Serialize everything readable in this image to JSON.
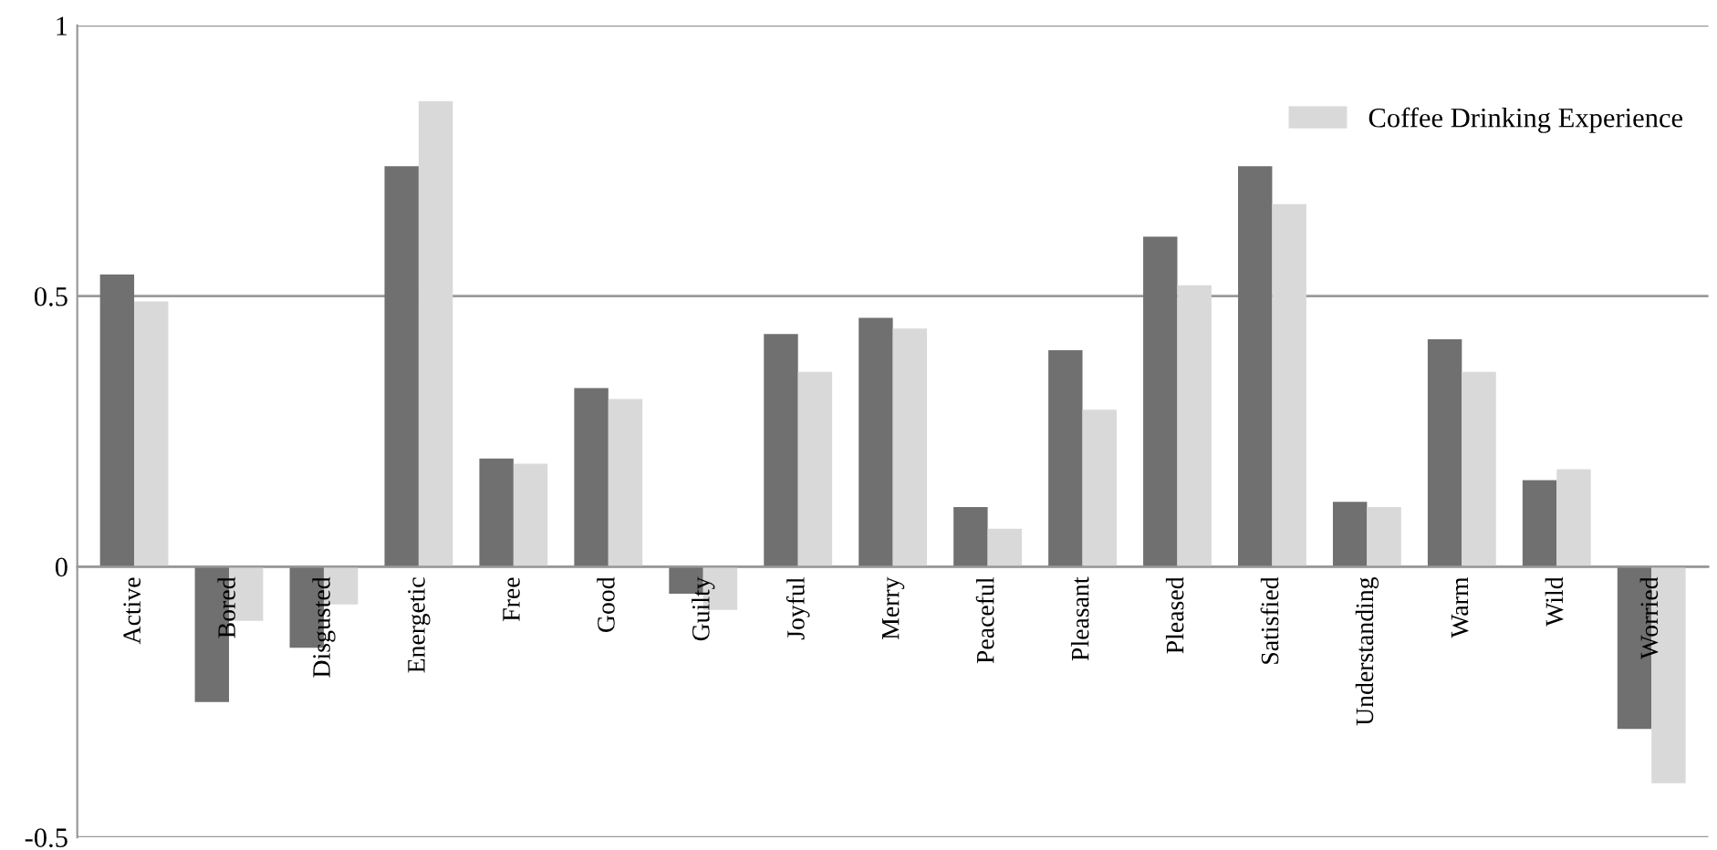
{
  "chart_data": {
    "type": "bar",
    "categories": [
      "Active",
      "Bored",
      "Disgusted",
      "Energetic",
      "Free",
      "Good",
      "Guilty",
      "Joyful",
      "Merry",
      "Peaceful",
      "Pleasant",
      "Pleased",
      "Satisfied",
      "Understanding",
      "Warm",
      "Wild",
      "Worried"
    ],
    "series": [
      {
        "color": "#707070",
        "values": [
          0.54,
          -0.25,
          -0.15,
          0.74,
          0.2,
          0.33,
          -0.05,
          0.43,
          0.46,
          0.11,
          0.4,
          0.61,
          0.74,
          0.12,
          0.42,
          0.16,
          -0.3
        ]
      },
      {
        "name": "Coffee Drinking Experience",
        "color": "#d9d9d9",
        "values": [
          0.49,
          -0.1,
          -0.07,
          0.86,
          0.19,
          0.31,
          -0.08,
          0.36,
          0.44,
          0.07,
          0.29,
          0.52,
          0.67,
          0.11,
          0.36,
          0.18,
          -0.4
        ]
      }
    ],
    "ylim": [
      -0.5,
      1
    ],
    "yticks": [
      -0.5,
      0,
      0.5,
      1
    ],
    "grid": "y",
    "legend": "top right"
  }
}
